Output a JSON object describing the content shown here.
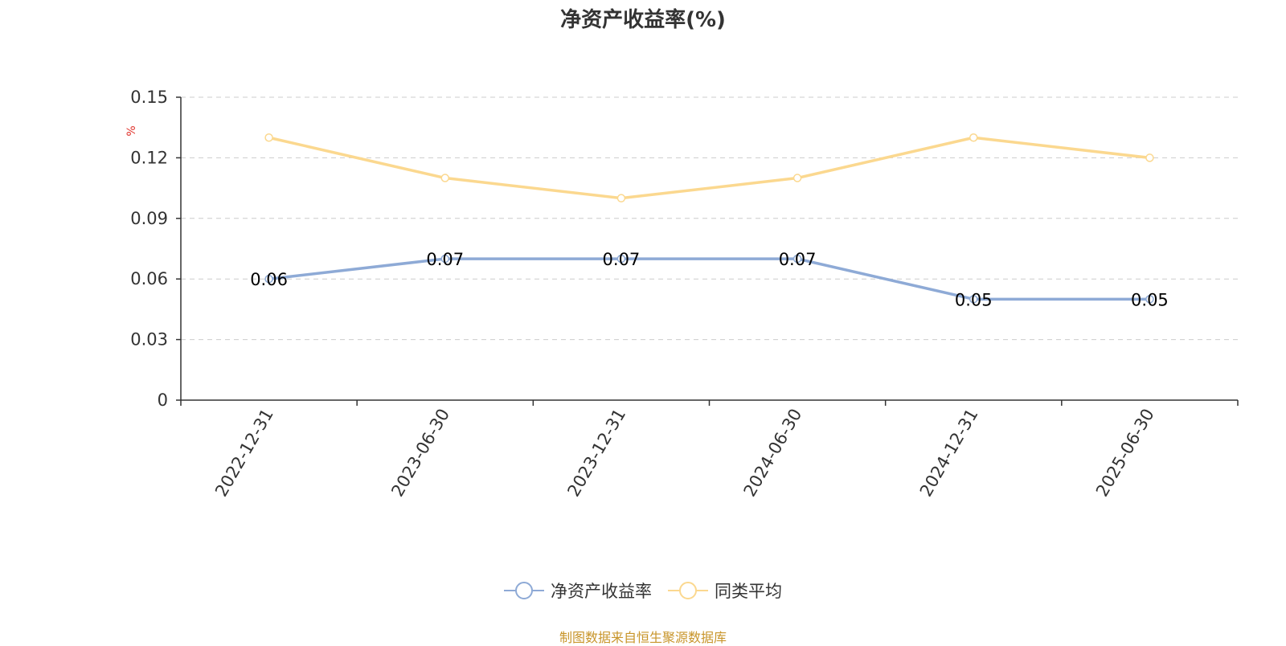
{
  "chart_data": {
    "type": "line",
    "title": "净资产收益率(%)",
    "ylabel": "%",
    "xlabel": "",
    "categories": [
      "2022-12-31",
      "2023-06-30",
      "2023-12-31",
      "2024-06-30",
      "2024-12-31",
      "2025-06-30"
    ],
    "ylim": [
      0,
      0.15
    ],
    "yticks": [
      "0",
      "0.03",
      "0.06",
      "0.09",
      "0.12",
      "0.15"
    ],
    "grid": true,
    "legend_position": "bottom",
    "series": [
      {
        "name": "净资产收益率",
        "values": [
          0.06,
          0.07,
          0.07,
          0.07,
          0.05,
          0.05
        ],
        "color": "#8eaad6",
        "show_labels": true
      },
      {
        "name": "同类平均",
        "values": [
          0.13,
          0.11,
          0.1,
          0.11,
          0.13,
          0.12
        ],
        "color": "#fbd88f",
        "show_labels": false
      }
    ]
  },
  "source_note": "制图数据来自恒生聚源数据库"
}
